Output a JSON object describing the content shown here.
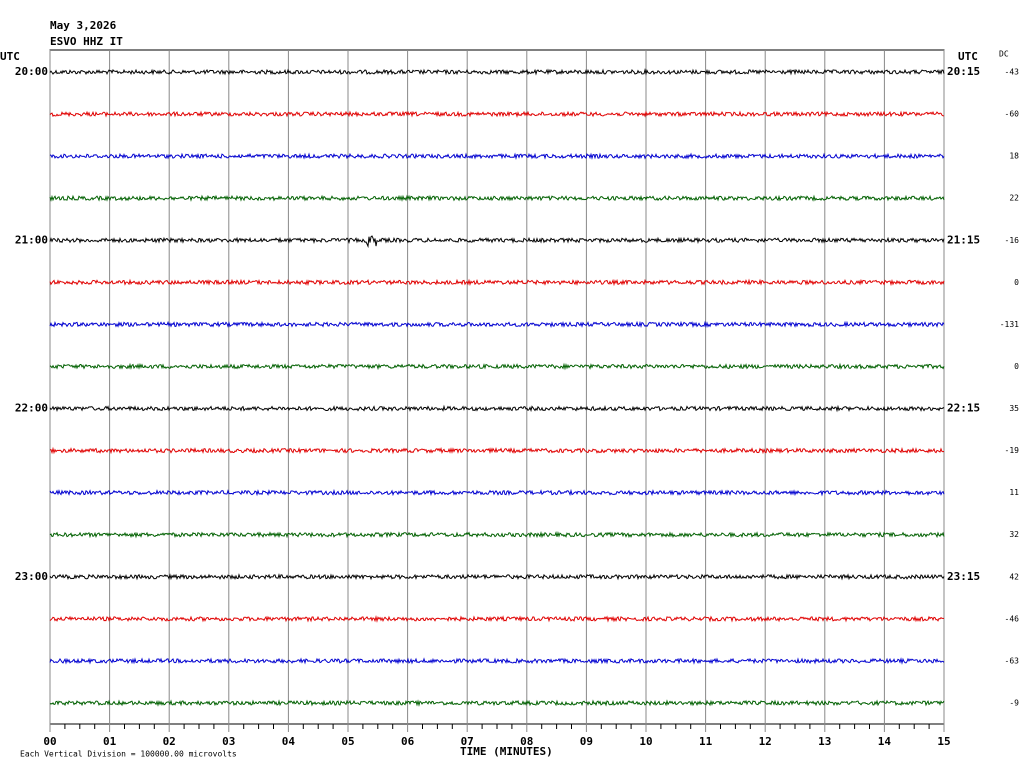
{
  "header": {
    "date": "May 3,2026",
    "station": "ESVO HHZ IT"
  },
  "left_axis": {
    "label": "UTC",
    "rows": [
      "20:00",
      "21:00",
      "22:00",
      "23:00"
    ]
  },
  "right_axis": {
    "label": "UTC",
    "rows": [
      "20:15",
      "21:15",
      "22:15",
      "23:15"
    ]
  },
  "dc": {
    "label": "DC",
    "values": [
      -43,
      -60,
      18,
      22,
      -16,
      0,
      -131,
      0,
      35,
      -19,
      11,
      32,
      42,
      -46,
      -63,
      -9
    ]
  },
  "x_axis": {
    "label": "TIME (MINUTES)",
    "ticks": [
      "00",
      "01",
      "02",
      "03",
      "04",
      "05",
      "06",
      "07",
      "08",
      "09",
      "10",
      "11",
      "12",
      "13",
      "14",
      "15"
    ]
  },
  "footer": "Each Vertical Division = 100000.00 microvolts"
}
